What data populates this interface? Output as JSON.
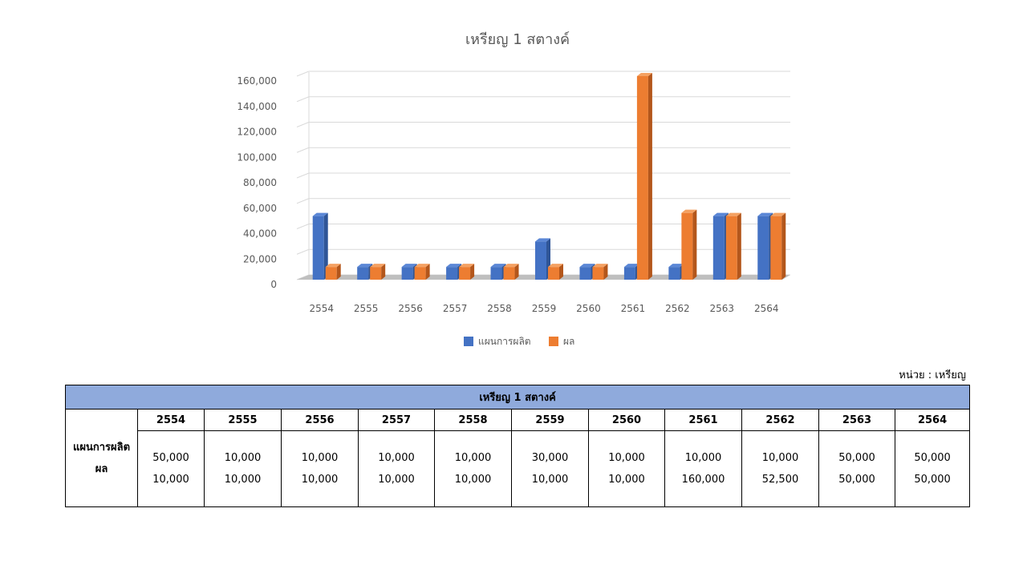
{
  "chart_data": {
    "type": "bar",
    "title": "เหรียญ 1  สตางค์",
    "categories": [
      "2554",
      "2555",
      "2556",
      "2557",
      "2558",
      "2559",
      "2560",
      "2561",
      "2562",
      "2563",
      "2564"
    ],
    "series": [
      {
        "name": "แผนการผลิต",
        "values": [
          50000,
          10000,
          10000,
          10000,
          10000,
          30000,
          10000,
          10000,
          10000,
          50000,
          50000
        ]
      },
      {
        "name": "ผล",
        "values": [
          10000,
          10000,
          10000,
          10000,
          10000,
          10000,
          10000,
          160000,
          52500,
          50000,
          50000
        ]
      }
    ],
    "yticks": [
      "0",
      "20,000",
      "40,000",
      "60,000",
      "80,000",
      "100,000",
      "120,000",
      "140,000",
      "160,000"
    ],
    "ylim": [
      0,
      160000
    ],
    "grid": true,
    "legend_position": "bottom",
    "colors": {
      "plan": "#4472c4",
      "result": "#ed7d31"
    },
    "style": "3d-clustered-column"
  },
  "unit_label": "หน่วย : เหรียญ",
  "table": {
    "title": "เหรียญ 1  สตางค์",
    "row_labels": [
      "แผนการผลิต",
      "ผล"
    ],
    "years": [
      "2554",
      "2555",
      "2556",
      "2557",
      "2558",
      "2559",
      "2560",
      "2561",
      "2562",
      "2563",
      "2564"
    ],
    "plan": [
      "50,000",
      "10,000",
      "10,000",
      "10,000",
      "10,000",
      "30,000",
      "10,000",
      "10,000",
      "10,000",
      "50,000",
      "50,000"
    ],
    "result": [
      "10,000",
      "10,000",
      "10,000",
      "10,000",
      "10,000",
      "10,000",
      "10,000",
      "160,000",
      "52,500",
      "50,000",
      "50,000"
    ]
  }
}
